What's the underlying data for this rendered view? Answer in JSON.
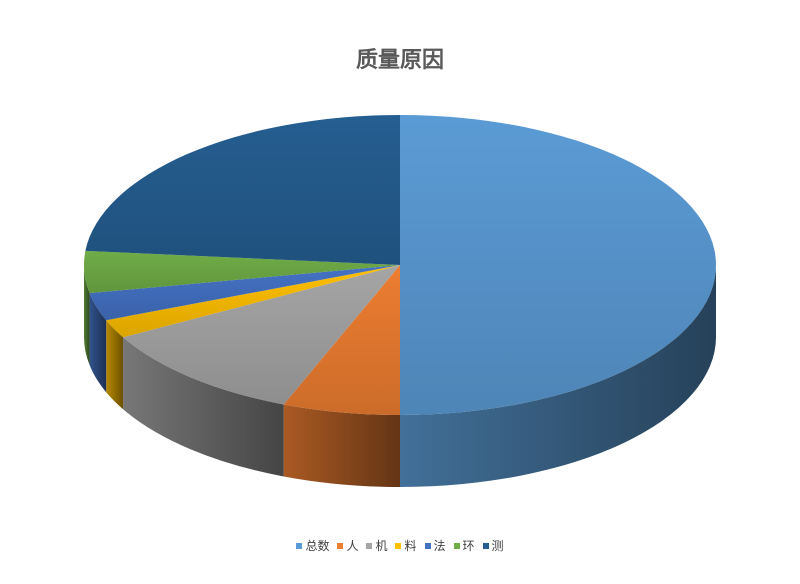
{
  "chart_data": {
    "type": "pie",
    "title": "质量原因",
    "categories": [
      "总数",
      "人",
      "机",
      "料",
      "法",
      "环",
      "测"
    ],
    "values": [
      50,
      6,
      11,
      2,
      3,
      4.5,
      23.5
    ],
    "colors": [
      "#5B9BD5",
      "#ED7D31",
      "#A5A5A5",
      "#FFC000",
      "#4472C4",
      "#70AD47",
      "#255E91"
    ],
    "legend_position": "bottom",
    "style": "3d"
  }
}
